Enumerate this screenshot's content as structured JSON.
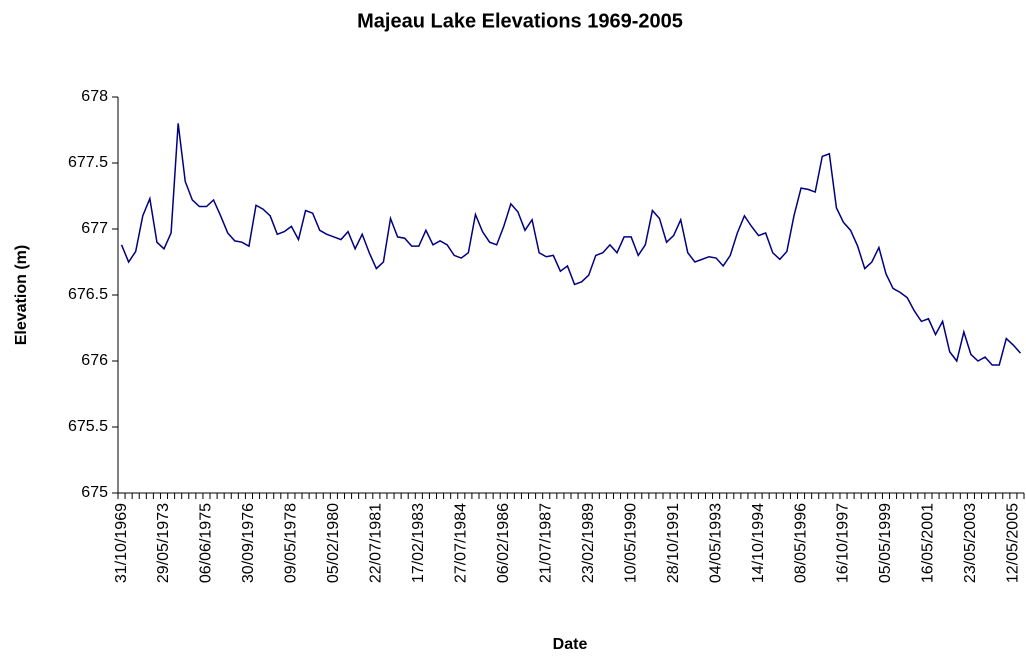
{
  "chart_data": {
    "type": "line",
    "title": "Majeau Lake Elevations 1969-2005",
    "x_label": "Date",
    "y_label": "Elevation (m)",
    "categories": [
      "31/10/1969",
      null,
      null,
      null,
      null,
      null,
      "29/05/1973",
      null,
      null,
      null,
      null,
      null,
      "06/06/1975",
      null,
      null,
      null,
      null,
      null,
      "30/09/1976",
      null,
      null,
      null,
      null,
      null,
      "09/05/1978",
      null,
      null,
      null,
      null,
      null,
      "05/02/1980",
      null,
      null,
      null,
      null,
      null,
      "22/07/1981",
      null,
      null,
      null,
      null,
      null,
      "17/02/1983",
      null,
      null,
      null,
      null,
      null,
      "27/07/1984",
      null,
      null,
      null,
      null,
      null,
      "06/02/1986",
      null,
      null,
      null,
      null,
      null,
      "21/07/1987",
      null,
      null,
      null,
      null,
      null,
      "23/02/1989",
      null,
      null,
      null,
      null,
      null,
      "10/05/1990",
      null,
      null,
      null,
      null,
      null,
      "28/10/1991",
      null,
      null,
      null,
      null,
      null,
      "04/05/1993",
      null,
      null,
      null,
      null,
      null,
      "14/10/1994",
      null,
      null,
      null,
      null,
      null,
      "08/05/1996",
      null,
      null,
      null,
      null,
      null,
      "16/10/1997",
      null,
      null,
      null,
      null,
      null,
      "05/05/1999",
      null,
      null,
      null,
      null,
      null,
      "16/05/2001",
      null,
      null,
      null,
      null,
      null,
      "23/05/2003",
      null,
      null,
      null,
      null,
      null,
      "12/05/2005",
      null
    ],
    "values": [
      676.88,
      676.75,
      676.83,
      677.1,
      677.23,
      676.9,
      676.85,
      676.97,
      677.8,
      677.36,
      677.22,
      677.17,
      677.17,
      677.22,
      677.1,
      676.97,
      676.91,
      676.9,
      676.87,
      677.18,
      677.15,
      677.1,
      676.96,
      676.98,
      677.02,
      676.92,
      677.14,
      677.12,
      676.99,
      676.96,
      676.94,
      676.92,
      676.98,
      676.85,
      676.96,
      676.82,
      676.7,
      676.75,
      677.08,
      676.94,
      676.93,
      676.87,
      676.87,
      676.99,
      676.88,
      676.91,
      676.88,
      676.8,
      676.78,
      676.82,
      677.11,
      676.98,
      676.9,
      676.88,
      677.02,
      677.19,
      677.13,
      676.99,
      677.07,
      676.82,
      676.79,
      676.8,
      676.68,
      676.72,
      676.58,
      676.6,
      676.65,
      676.8,
      676.82,
      676.88,
      676.82,
      676.94,
      676.94,
      676.8,
      676.88,
      677.14,
      677.08,
      676.9,
      676.95,
      677.07,
      676.82,
      676.75,
      676.77,
      676.79,
      676.78,
      676.72,
      676.8,
      676.97,
      677.1,
      677.02,
      676.95,
      676.97,
      676.82,
      676.77,
      676.83,
      677.1,
      677.31,
      677.3,
      677.28,
      677.55,
      677.57,
      677.16,
      677.05,
      676.99,
      676.87,
      676.7,
      676.75,
      676.86,
      676.66,
      676.55,
      676.52,
      676.48,
      676.38,
      676.3,
      676.32,
      676.2,
      676.3,
      676.07,
      676.0,
      676.22,
      676.05,
      676.0,
      676.03,
      675.97,
      675.97,
      676.17,
      676.12,
      676.06
    ],
    "color": "#000080",
    "ylim": [
      675,
      678
    ],
    "yticks": [
      675,
      675.5,
      676,
      676.5,
      677,
      677.5,
      678
    ],
    "grid": false
  }
}
